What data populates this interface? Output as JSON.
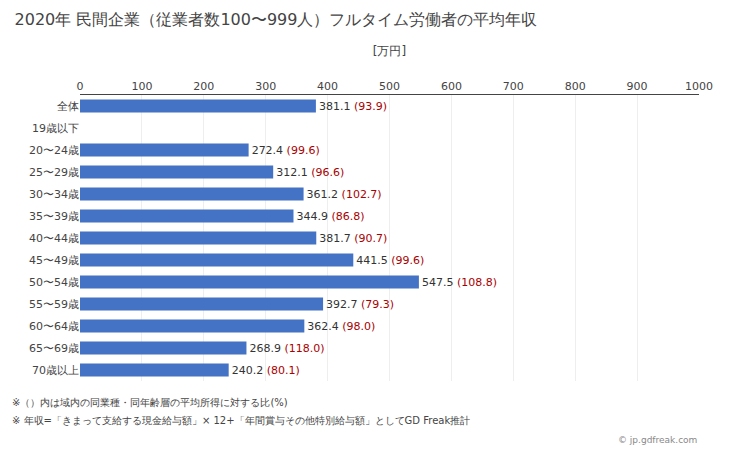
{
  "chart_data": {
    "type": "bar",
    "orientation": "horizontal",
    "title": "2020年 民間企業（従業者数100〜999人）フルタイム労働者の平均年収",
    "xlabel": "[万円]",
    "categories": [
      "全体",
      "19歳以下",
      "20〜24歳",
      "25〜29歳",
      "30〜34歳",
      "35〜39歳",
      "40〜44歳",
      "45〜49歳",
      "50〜54歳",
      "55〜59歳",
      "60〜64歳",
      "65〜69歳",
      "70歳以上"
    ],
    "values": [
      381.1,
      0,
      272.4,
      312.1,
      361.2,
      344.9,
      381.7,
      441.5,
      547.5,
      392.7,
      362.4,
      268.9,
      240.2
    ],
    "value_labels": [
      "381.1",
      null,
      "272.4",
      "312.1",
      "361.2",
      "344.9",
      "381.7",
      "441.5",
      "547.5",
      "392.7",
      "362.4",
      "268.9",
      "240.2"
    ],
    "ratio_labels": [
      "(93.9)",
      null,
      "(99.6)",
      "(96.6)",
      "(102.7)",
      "(86.8)",
      "(90.7)",
      "(99.6)",
      "(108.8)",
      "(79.3)",
      "(98.0)",
      "(118.0)",
      "(80.1)"
    ],
    "data_labels": true,
    "color": "#4472C4",
    "xlim": [
      0,
      1000
    ],
    "xticks": [
      0,
      100,
      200,
      300,
      400,
      500,
      600,
      700,
      800,
      900,
      1000
    ],
    "grid": true,
    "annotations": [
      "※（）内は域内の同業種・同年齢層の平均所得に対する比(%)",
      "※ 年収=「きまって支給する現金給与額」× 12+「年間賞与その他特別給与額」としてGD Freak推計",
      "© jp.gdfreak.com"
    ]
  }
}
